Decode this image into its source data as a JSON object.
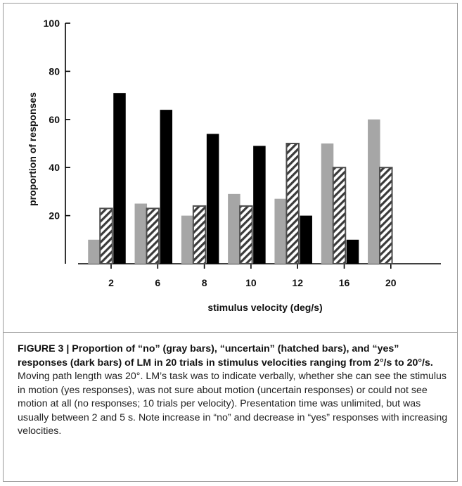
{
  "chart_data": {
    "type": "bar",
    "xlabel": "stimulus velocity (deg/s)",
    "ylabel": "proportion of responses",
    "ylim": [
      0,
      100
    ],
    "yticks": [
      20,
      40,
      60,
      80,
      100
    ],
    "categories": [
      "2",
      "6",
      "8",
      "10",
      "12",
      "16",
      "20"
    ],
    "series": [
      {
        "key": "no",
        "fill": "gray",
        "color": "#a6a6a6",
        "values": [
          10,
          25,
          20,
          29,
          27,
          50,
          60
        ]
      },
      {
        "key": "uncertain",
        "fill": "hatched",
        "color": "#4d4d4d",
        "values": [
          23,
          23,
          24,
          24,
          50,
          40,
          40
        ]
      },
      {
        "key": "yes",
        "fill": "dark",
        "color": "#000000",
        "values": [
          71,
          64,
          54,
          49,
          20,
          10,
          0
        ]
      }
    ],
    "grid": false,
    "legend": "none"
  },
  "caption": {
    "bold": "FIGURE 3 | Proportion of “no” (gray bars), “uncertain” (hatched bars), and “yes” responses (dark bars) of LM in 20 trials in stimulus velocities ranging from 2°/s to 20°/s.",
    "body": " Moving path length was 20°. LM’s task was to indicate verbally, whether she can see the stimulus in motion (yes responses), was not sure about motion (uncertain responses) or could not see motion at all (no responses; 10 trials per velocity). Presentation time was unlimited, but was usually between 2 and 5 s. Note increase in “no” and decrease in “yes” responses with increasing velocities."
  }
}
